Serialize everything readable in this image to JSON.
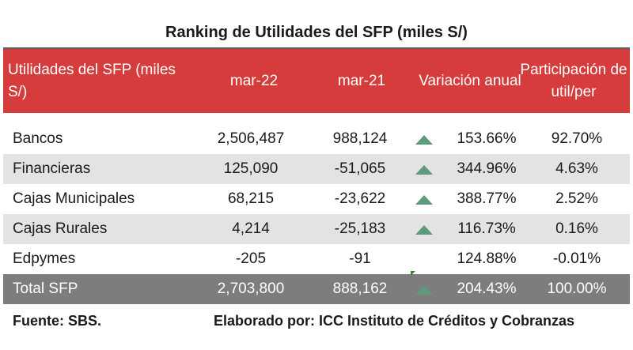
{
  "title": "Ranking de Utilidades del SFP (miles S/)",
  "header": {
    "col1": "Utilidades del SFP (miles S/)",
    "col2": "mar-22",
    "col3": "mar-21",
    "col4": "Variación anual",
    "col5": "Participación de util/per"
  },
  "rows": [
    {
      "name": "Bancos",
      "mar22": "2,506,487",
      "mar21": "988,124",
      "arrow": "up-triangle-icon",
      "var": "153.66%",
      "part": "92.70%"
    },
    {
      "name": "Financieras",
      "mar22": "125,090",
      "mar21": "-51,065",
      "arrow": "up-triangle-icon",
      "var": "344.96%",
      "part": "4.63%"
    },
    {
      "name": "Cajas Municipales",
      "mar22": "68,215",
      "mar21": "-23,622",
      "arrow": "up-triangle-icon",
      "var": "388.77%",
      "part": "2.52%"
    },
    {
      "name": "Cajas Rurales",
      "mar22": "4,214",
      "mar21": "-25,183",
      "arrow": "up-triangle-icon",
      "var": "116.73%",
      "part": "0.16%"
    },
    {
      "name": "Edpymes",
      "mar22": "-205",
      "mar21": "-91",
      "arrow": "",
      "var": "124.88%",
      "part": "-0.01%"
    },
    {
      "name": "Total SFP",
      "mar22": "2,703,800",
      "mar21": "888,162",
      "arrow": "up-triangle-icon",
      "var": "204.43%",
      "part": "100.00%"
    }
  ],
  "footer": {
    "source": "Fuente: SBS.",
    "credit": "Elaborado por: ICC Instituto de Créditos y Cobranzas"
  },
  "colors": {
    "header_bg": "#d63c3c",
    "shade_bg": "#e3e3e3",
    "total_bg": "#7d7d7d",
    "arrow_fill": "#5e9a7e"
  }
}
